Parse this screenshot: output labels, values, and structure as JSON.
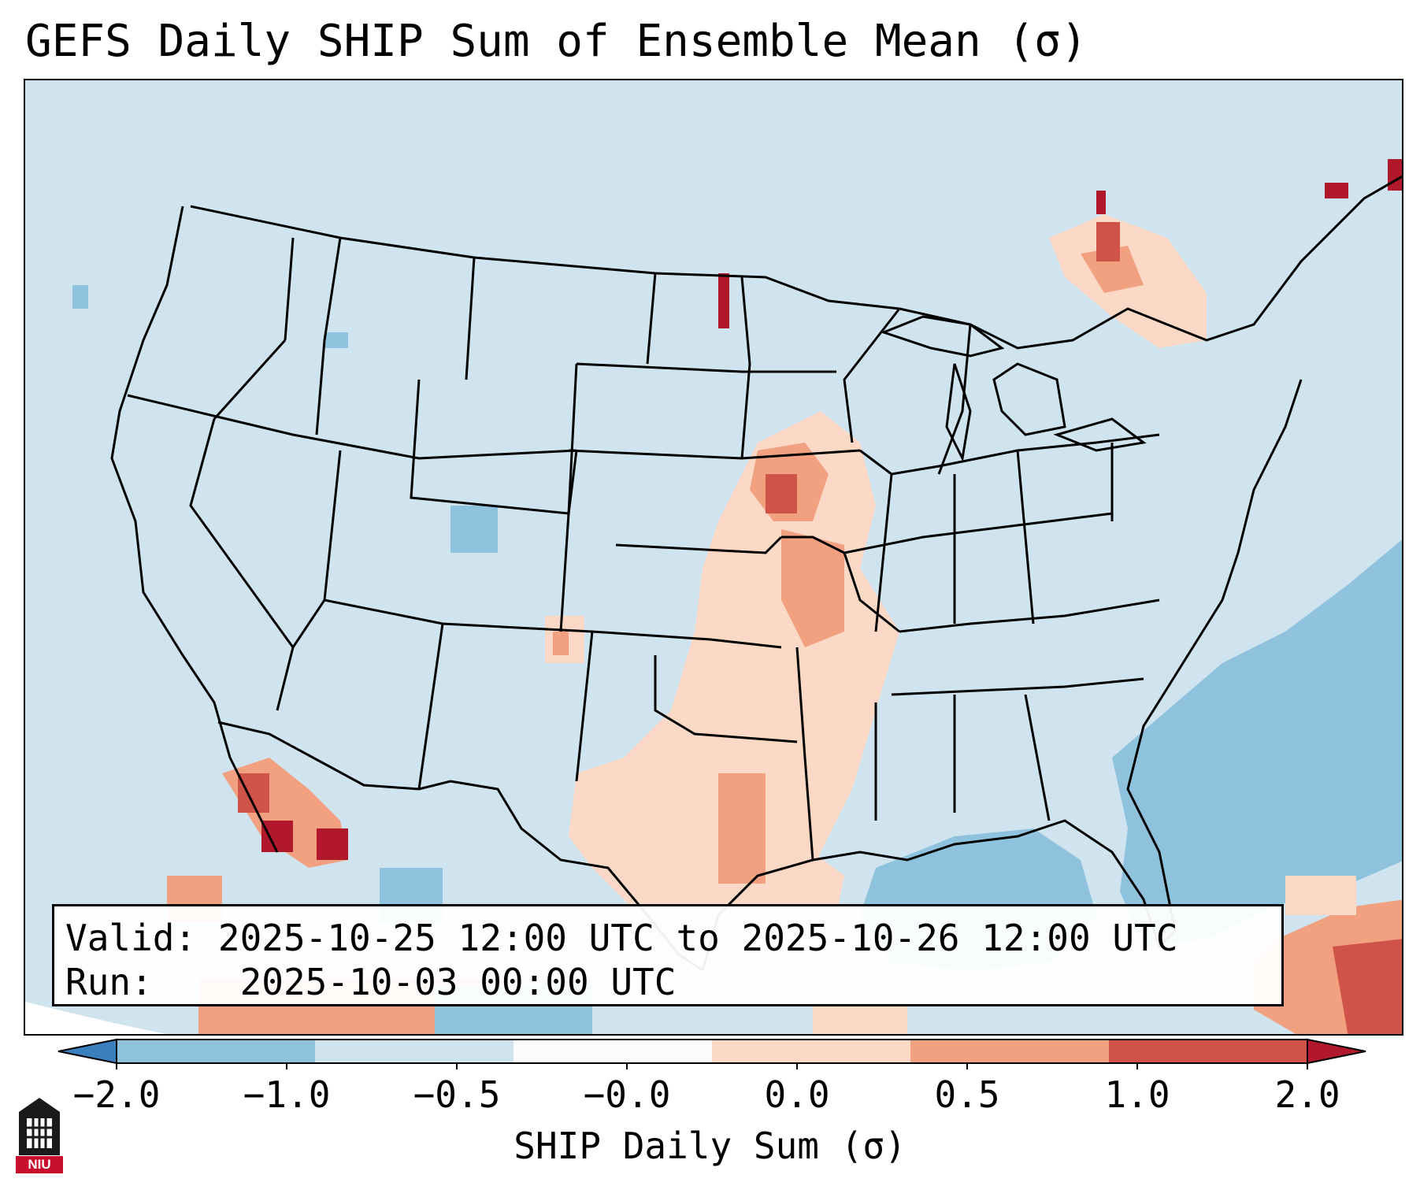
{
  "title": "GEFS Daily SHIP Sum of Ensemble Mean (σ)",
  "info": {
    "valid_label": "Valid:",
    "valid_value": "2025-10-25 12:00 UTC to 2025-10-26 12:00 UTC",
    "run_label": "Run:",
    "run_value": "2025-10-03 00:00 UTC"
  },
  "colorbar": {
    "label": "SHIP Daily Sum (σ)",
    "ticks": [
      "−2.0",
      "−1.0",
      "−0.5",
      "−0.0",
      "0.0",
      "0.5",
      "1.0",
      "2.0"
    ],
    "colors": [
      "#3b7fbf",
      "#8fc2dd",
      "#d0e4f0",
      "#f9fbfd",
      "#fbd9c6",
      "#f1a180",
      "#cf5348",
      "#b2182b"
    ],
    "extend": "both"
  },
  "map": {
    "projection": "Lambert Conformal (CONUS)",
    "background_color": "#d0e4f0",
    "border_color": "#000000"
  },
  "logo": {
    "text": "NIU",
    "icon": "niu-tower-logo"
  }
}
